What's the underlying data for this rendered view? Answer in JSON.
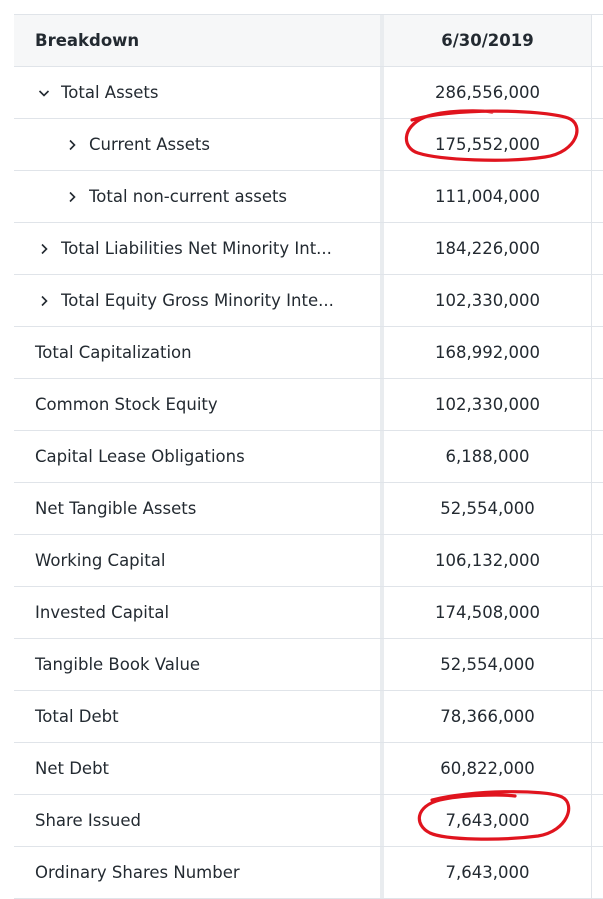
{
  "table": {
    "header": {
      "label": "Breakdown",
      "date": "6/30/2019"
    },
    "rows": [
      {
        "label": "Total Assets",
        "value": "286,556,000"
      },
      {
        "label": "Current Assets",
        "value": "175,552,000"
      },
      {
        "label": "Total non-current assets",
        "value": "111,004,000"
      },
      {
        "label": "Total Liabilities Net Minority Int...",
        "value": "184,226,000"
      },
      {
        "label": "Total Equity Gross Minority Inte...",
        "value": "102,330,000"
      },
      {
        "label": "Total Capitalization",
        "value": "168,992,000"
      },
      {
        "label": "Common Stock Equity",
        "value": "102,330,000"
      },
      {
        "label": "Capital Lease Obligations",
        "value": "6,188,000"
      },
      {
        "label": "Net Tangible Assets",
        "value": "52,554,000"
      },
      {
        "label": "Working Capital",
        "value": "106,132,000"
      },
      {
        "label": "Invested Capital",
        "value": "174,508,000"
      },
      {
        "label": "Tangible Book Value",
        "value": "52,554,000"
      },
      {
        "label": "Total Debt",
        "value": "78,366,000"
      },
      {
        "label": "Net Debt",
        "value": "60,822,000"
      },
      {
        "label": "Share Issued",
        "value": "7,643,000"
      },
      {
        "label": "Ordinary Shares Number",
        "value": "7,643,000"
      }
    ]
  },
  "icons": {
    "expanded": "chevron-down-icon",
    "collapsed": "chevron-right-icon"
  },
  "annotation_color": "#e0141e"
}
